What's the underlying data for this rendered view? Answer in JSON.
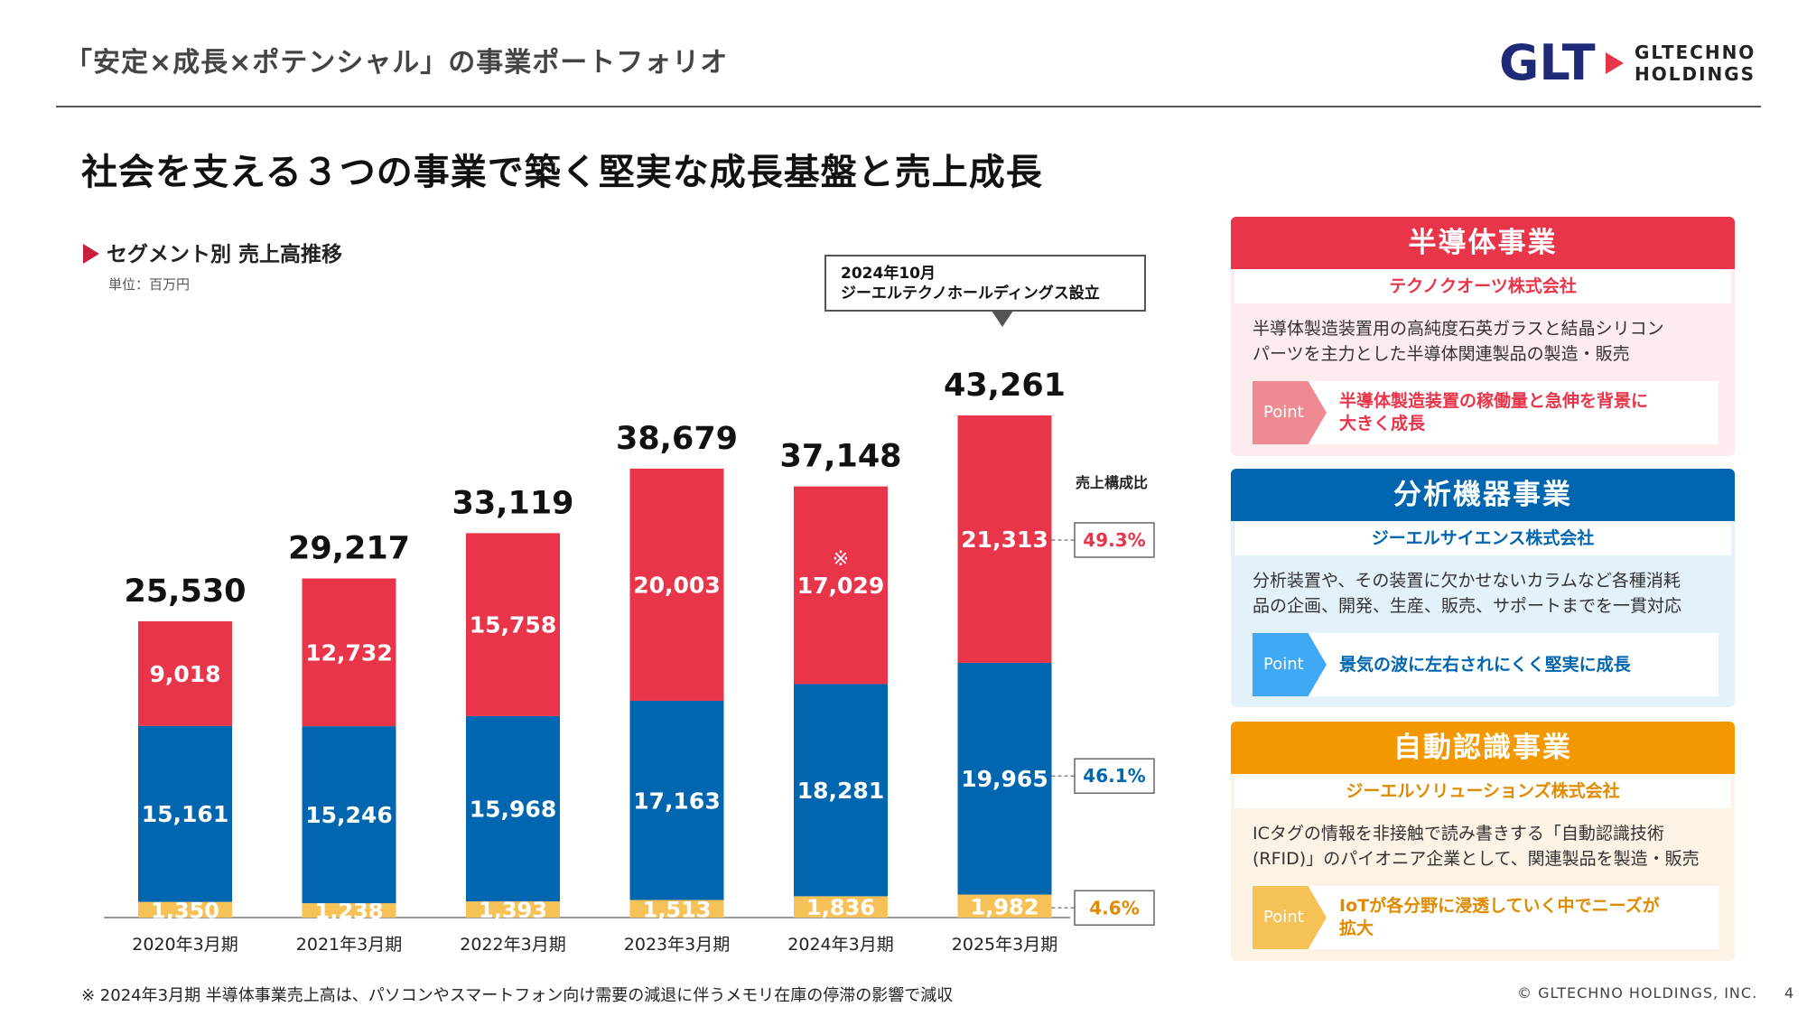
{
  "header": {
    "title": "「安定×成長×ポテンシャル」の事業ポートフォリオ",
    "logo_mark": "GLT",
    "logo_line1": "GLTECHNO",
    "logo_line2": "HOLDINGS"
  },
  "main_title": "社会を支える３つの事業で築く堅実な成長基盤と売上成長",
  "chart_heading": "セグメント別 売上高推移",
  "unit_label": "単位：百万円",
  "callout": {
    "line1": "2024年10月",
    "line2": "ジーエルテクノホールディングス設立"
  },
  "chart_data": {
    "type": "bar",
    "stacked": true,
    "categories": [
      "2020年3月期",
      "2021年3月期",
      "2022年3月期",
      "2023年3月期",
      "2024年3月期",
      "2025年3月期"
    ],
    "series": [
      {
        "name": "自動認識事業",
        "color": "#f6c157",
        "values": [
          1350,
          1238,
          1393,
          1513,
          1836,
          1982
        ],
        "labels": [
          "1,350",
          "1,238",
          "1,393",
          "1,513",
          "1,836",
          "1,982"
        ]
      },
      {
        "name": "分析機器事業",
        "color": "#0066b0",
        "values": [
          15161,
          15246,
          15968,
          17163,
          18281,
          19965
        ],
        "labels": [
          "15,161",
          "15,246",
          "15,968",
          "17,163",
          "18,281",
          "19,965"
        ]
      },
      {
        "name": "半導体事業",
        "color": "#e8354a",
        "values": [
          9018,
          12732,
          15758,
          20003,
          17029,
          21313
        ],
        "labels": [
          "9,018",
          "12,732",
          "15,758",
          "20,003",
          "17,029",
          "21,313"
        ]
      }
    ],
    "totals": [
      25530,
      29217,
      33119,
      38679,
      37148,
      43261
    ],
    "total_labels": [
      "25,530",
      "29,217",
      "33,119",
      "38,679",
      "37,148",
      "43,261"
    ],
    "annotation": {
      "category": "2024年3月期",
      "series": "半導体事業",
      "mark": "※"
    },
    "ylim": [
      0,
      45000
    ],
    "grid": false,
    "composition": {
      "title": "売上構成比",
      "values": [
        {
          "series": "半導体事業",
          "label": "49.3%",
          "color": "#e8354a"
        },
        {
          "series": "分析機器事業",
          "label": "46.1%",
          "color": "#0066b0"
        },
        {
          "series": "自動認識事業",
          "label": "4.6%",
          "color": "#e08a00"
        }
      ]
    }
  },
  "panels": [
    {
      "title": "半導体事業",
      "company": "テクノクオーツ株式会社",
      "desc1": "半導体製造装置用の高純度石英ガラスと結晶シリコン",
      "desc2": "パーツを主力とした半導体関連製品の製造・販売",
      "point_tag": "Point",
      "point1": "半導体製造装置の稼働量と急伸を背景に",
      "point2": "大きく成長",
      "head_color": "#e8354a",
      "tag_color": "#ef8a93",
      "bg_color": "#fdebed",
      "text_color": "#e8354a"
    },
    {
      "title": "分析機器事業",
      "company": "ジーエルサイエンス株式会社",
      "desc1": "分析装置や、その装置に欠かせないカラムなど各種消耗",
      "desc2": "品の企画、開発、生産、販売、サポートまでを一貫対応",
      "point_tag": "Point",
      "point1": "景気の波に左右されにくく堅実に成長",
      "point2": "",
      "head_color": "#0066b0",
      "tag_color": "#3fa9f5",
      "bg_color": "#e3f1fb",
      "text_color": "#0066b0"
    },
    {
      "title": "自動認識事業",
      "company": "ジーエルソリューションズ株式会社",
      "desc1": "ICタグの情報を非接触で読み書きする「自動認識技術",
      "desc2": "(RFID)」のパイオニア企業として、関連製品を製造・販売",
      "point_tag": "Point",
      "point1": "IoTが各分野に浸透していく中でニーズが",
      "point2": "拡大",
      "head_color": "#f39800",
      "tag_color": "#f6c157",
      "bg_color": "#fdf3e4",
      "text_color": "#e08a00"
    }
  ],
  "footnote": "※ 2024年3月期 半導体事業売上高は、パソコンやスマートフォン向け需要の減退に伴うメモリ在庫の停滞の影響で減収",
  "copyright": "© GLTECHNO HOLDINGS, INC.",
  "page_number": "4"
}
